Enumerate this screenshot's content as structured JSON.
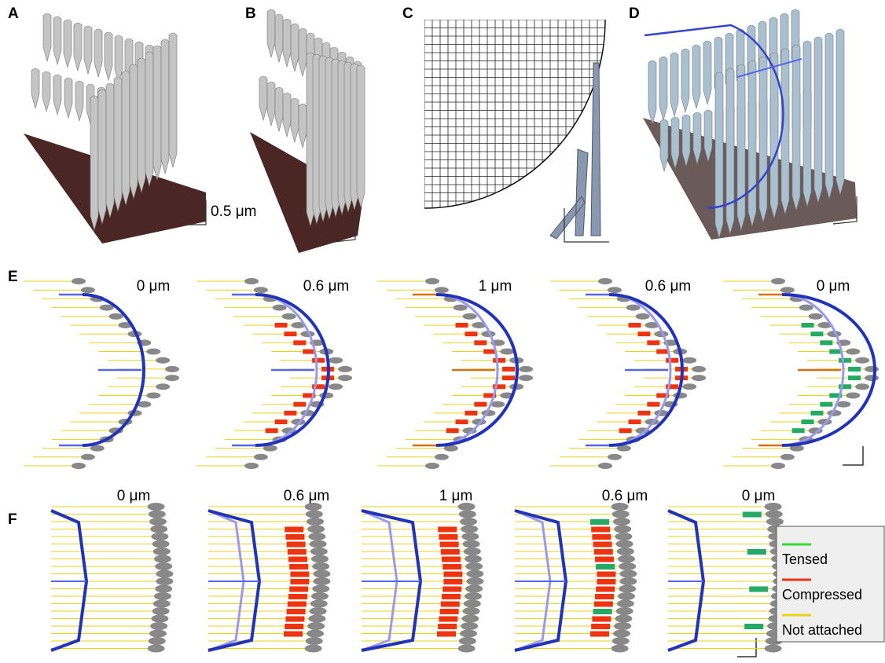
{
  "panels": [
    {
      "label": "A"
    },
    {
      "label": "B"
    },
    {
      "label": "C"
    },
    {
      "label": "D"
    }
  ],
  "scale_bar": "0.5 μm",
  "row_e": {
    "label": "E",
    "displacements": [
      "0 μm",
      "0.6 μm",
      "1 μm",
      "0.6 μm",
      "0 μm"
    ]
  },
  "row_f": {
    "label": "F",
    "displacements": [
      "0 μm",
      "0.6 μm",
      "1 μm",
      "0.6 μm",
      "0 μm"
    ]
  },
  "legend": {
    "items": [
      {
        "label": "Tensed",
        "color": "#33dd33"
      },
      {
        "label": "Compressed",
        "color": "#ee3311"
      },
      {
        "label": "Not attached",
        "color": "#e8d21a"
      }
    ]
  }
}
